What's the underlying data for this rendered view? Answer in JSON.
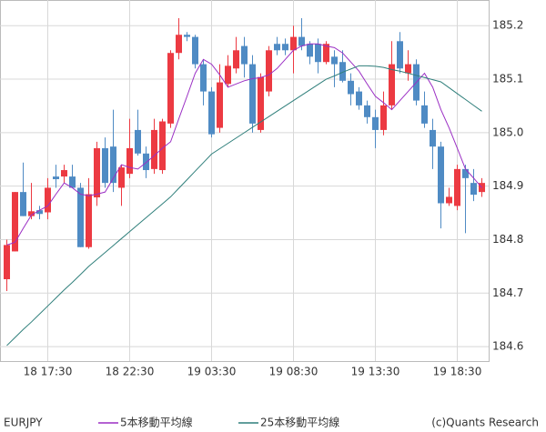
{
  "chart_data": {
    "type": "candlestick",
    "symbol": "EURJPY",
    "credit": "(c)Quants Research",
    "categories": [
      null,
      null,
      null,
      null,
      null,
      "18 17:30",
      null,
      null,
      null,
      null,
      null,
      null,
      null,
      null,
      null,
      "18 22:30",
      null,
      null,
      null,
      null,
      null,
      null,
      null,
      null,
      null,
      "19 03:30",
      null,
      null,
      null,
      null,
      null,
      null,
      null,
      null,
      null,
      "19 08:30",
      null,
      null,
      null,
      null,
      null,
      null,
      null,
      null,
      null,
      "19 13:30",
      null,
      null,
      null,
      null,
      null,
      null,
      null,
      null,
      null,
      "19 18:30",
      null,
      null,
      null
    ],
    "open": [
      184.726,
      184.778,
      184.889,
      184.844,
      184.855,
      184.851,
      184.918,
      184.918,
      184.918,
      184.897,
      184.786,
      184.879,
      184.971,
      184.974,
      184.897,
      184.923,
      185.005,
      184.961,
      184.932,
      184.93,
      185.017,
      185.149,
      185.183,
      185.179,
      185.128,
      185.077,
      185.009,
      185.091,
      185.12,
      185.162,
      185.128,
      185.005,
      185.077,
      185.166,
      185.166,
      185.154,
      185.179,
      185.166,
      185.166,
      185.132,
      185.142,
      185.132,
      185.097,
      185.077,
      185.051,
      185.029,
      185.005,
      185.051,
      185.171,
      185.111,
      185.128,
      185.051,
      185.005,
      184.974,
      184.868,
      184.863,
      184.932,
      184.906,
      184.889
    ],
    "high": [
      184.8,
      184.889,
      184.944,
      184.906,
      184.863,
      184.915,
      184.94,
      184.94,
      184.94,
      184.906,
      184.915,
      184.983,
      184.991,
      185.043,
      184.94,
      185.026,
      185.043,
      184.974,
      185.026,
      185.026,
      185.154,
      185.214,
      185.188,
      185.183,
      185.137,
      185.085,
      185.128,
      185.145,
      185.179,
      185.179,
      185.145,
      185.111,
      185.162,
      185.179,
      185.176,
      185.2,
      185.214,
      185.171,
      185.176,
      185.171,
      185.154,
      185.154,
      185.111,
      185.085,
      185.06,
      185.043,
      185.077,
      185.171,
      185.188,
      185.154,
      185.137,
      185.077,
      185.026,
      184.983,
      184.897,
      184.94,
      184.94,
      184.932,
      184.915
    ],
    "low": [
      184.704,
      184.778,
      184.844,
      184.838,
      184.838,
      184.838,
      184.897,
      184.906,
      184.897,
      184.786,
      184.783,
      184.863,
      184.897,
      184.889,
      184.863,
      184.915,
      184.957,
      184.915,
      184.923,
      184.923,
      185.009,
      185.137,
      185.171,
      185.12,
      185.051,
      184.991,
      185.0,
      185.085,
      185.111,
      185.103,
      185.0,
      185.0,
      185.068,
      185.145,
      185.145,
      185.111,
      185.154,
      185.128,
      185.111,
      185.128,
      185.085,
      185.094,
      185.051,
      185.043,
      185.017,
      184.971,
      184.995,
      185.043,
      185.111,
      185.097,
      185.051,
      185.009,
      184.932,
      184.821,
      184.863,
      184.855,
      184.812,
      184.872,
      184.88
    ],
    "close": [
      184.79,
      184.889,
      184.844,
      184.853,
      184.848,
      184.897,
      184.913,
      184.93,
      184.897,
      184.786,
      184.885,
      184.971,
      184.906,
      184.906,
      184.935,
      184.971,
      184.961,
      184.93,
      185.005,
      185.021,
      185.149,
      185.183,
      185.179,
      185.128,
      185.077,
      184.997,
      185.094,
      185.125,
      185.154,
      185.128,
      185.017,
      185.104,
      185.154,
      185.154,
      185.154,
      185.179,
      185.162,
      185.142,
      185.132,
      185.166,
      185.128,
      185.097,
      185.072,
      185.051,
      185.029,
      185.005,
      185.051,
      185.128,
      185.12,
      185.128,
      185.06,
      185.017,
      184.974,
      184.868,
      184.88,
      184.932,
      184.915,
      184.884,
      184.906
    ],
    "up_color": "#ec3a42",
    "down_color": "#4f8bc4",
    "series": [
      {
        "name": "5本移動平均線",
        "color": "#9b2fc4",
        "values": [
          184.79,
          184.795,
          184.821,
          184.846,
          184.855,
          184.863,
          184.885,
          184.906,
          184.897,
          184.885,
          184.882,
          184.885,
          184.889,
          184.915,
          184.94,
          184.935,
          184.932,
          184.944,
          184.957,
          184.971,
          184.983,
          185.026,
          185.068,
          185.111,
          185.137,
          185.128,
          185.108,
          185.085,
          185.091,
          185.097,
          185.101,
          185.103,
          185.108,
          185.12,
          185.137,
          185.154,
          185.162,
          185.166,
          185.166,
          185.162,
          185.159,
          185.149,
          185.132,
          185.115,
          185.091,
          185.068,
          185.056,
          185.043,
          185.06,
          185.077,
          185.094,
          185.111,
          185.085,
          185.043,
          185.009,
          184.971,
          184.932,
          184.915,
          184.897
        ]
      },
      {
        "name": "25本移動平均線",
        "color": "#2f7f7b",
        "values": [
          184.602,
          184.617,
          184.632,
          184.646,
          184.661,
          184.676,
          184.691,
          184.706,
          184.72,
          184.735,
          184.75,
          184.763,
          184.776,
          184.789,
          184.802,
          184.815,
          184.828,
          184.841,
          184.854,
          184.867,
          184.88,
          184.896,
          184.912,
          184.928,
          184.944,
          184.96,
          184.97,
          184.98,
          184.99,
          185.0,
          185.01,
          185.02,
          185.03,
          185.04,
          185.05,
          185.06,
          185.07,
          185.08,
          185.09,
          185.1,
          185.106,
          185.113,
          185.119,
          185.125,
          185.125,
          185.124,
          185.122,
          185.118,
          185.115,
          185.111,
          185.107,
          185.103,
          185.099,
          185.095,
          185.084,
          185.073,
          185.062,
          185.051,
          185.04
        ]
      }
    ],
    "ylim": [
      184.573,
      185.248
    ],
    "yticks": [
      184.6,
      184.7,
      184.8,
      184.9,
      {
        "value": 185,
        "label": "185.0"
      },
      185.1,
      185.2
    ],
    "grid": true
  }
}
